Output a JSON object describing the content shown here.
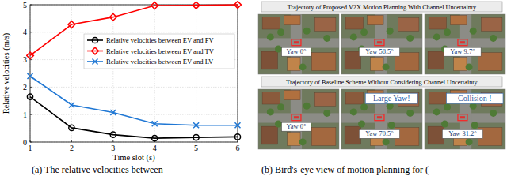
{
  "chart_data": {
    "type": "line",
    "x": [
      1,
      2,
      3,
      4,
      5,
      6
    ],
    "xlim": [
      1,
      6
    ],
    "xticks": [
      1,
      2,
      3,
      4,
      5,
      6
    ],
    "ylim": [
      0,
      5
    ],
    "yticks": [
      0,
      1,
      2,
      3,
      4,
      5
    ],
    "x_label": "Time slot (s)",
    "y_label": "Relative velocities (m/s)",
    "grid": true,
    "legend": "center right",
    "series": [
      {
        "name": "Relative velocities between EV and FV",
        "color": "#000000",
        "marker": "circle",
        "values": [
          1.65,
          0.52,
          0.27,
          0.14,
          0.17,
          0.19
        ]
      },
      {
        "name": "Relative velocities between EV and TV",
        "color": "#ff0000",
        "marker": "diamond",
        "values": [
          3.15,
          4.28,
          4.55,
          4.97,
          4.98,
          5.0
        ]
      },
      {
        "name": "Relative velocities between EV and LV",
        "color": "#1f77d4",
        "marker": "x",
        "values": [
          2.4,
          1.35,
          1.08,
          0.67,
          0.61,
          0.61
        ]
      }
    ]
  },
  "panel_b": {
    "rows": [
      {
        "title": "Trajectory of Proposed V2X Motion Planning With Channel Uncertainty",
        "frames": [
          {
            "label": "Yaw 0°"
          },
          {
            "label": "Yaw 58.5°"
          },
          {
            "label": "Yaw 9.7°"
          }
        ]
      },
      {
        "title": "Trajectory of Baseline Scheme Without Considering Channel Uncertainty",
        "frames": [
          {
            "label": "Yaw 0°"
          },
          {
            "label": "Yaw 70.5°",
            "note": "Large Yaw!"
          },
          {
            "label": "Yaw 31.2°",
            "note": "Collision !"
          }
        ]
      }
    ]
  },
  "captions": [
    "(a) The relative velocities between",
    "(b) Bird's-eye view of motion planning for ("
  ]
}
